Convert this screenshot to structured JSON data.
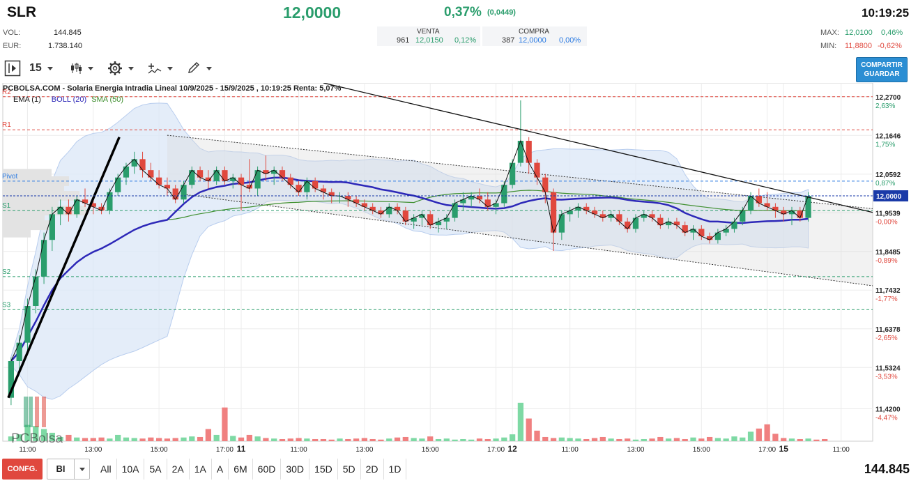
{
  "header": {
    "symbol": "SLR",
    "price": "12,0000",
    "pct": "0,37%",
    "change": "(0,0449)",
    "time": "10:19:25",
    "vol_label": "VOL:",
    "vol_value": "144.845",
    "eur_label": "EUR:",
    "eur_value": "1.738.140",
    "venta_label": "VENTA",
    "venta_qty": "961",
    "venta_price": "12,0150",
    "venta_pct": "0,12%",
    "compra_label": "COMPRA",
    "compra_qty": "387",
    "compra_price": "12,0000",
    "compra_pct": "0,00%",
    "max_label": "MAX:",
    "max_value": "12,0100",
    "max_pct": "0,46%",
    "min_label": "MIN:",
    "min_value": "11,8800",
    "min_pct": "-0,62%"
  },
  "toolbar": {
    "interval": "15",
    "share_line1": "COMPARTIR",
    "share_line2": "GUARDAR"
  },
  "bottom": {
    "config_label": "CONFG.",
    "select_value": "BI",
    "periods": [
      "All",
      "10A",
      "5A",
      "2A",
      "1A",
      "A",
      "6M",
      "60D",
      "30D",
      "15D",
      "5D",
      "2D",
      "1D"
    ],
    "volume_total": "144.845"
  },
  "colors": {
    "up": "#2a9d6c",
    "down": "#e0483e",
    "boll": "#2d28b8",
    "sma": "#3f8f2f",
    "band_fill": "#dbe7f7",
    "accent": "#2b8ed3"
  },
  "chart_data": {
    "type": "candlestick",
    "title": "PCBOLSA.COM - Solaria Energia Intradia Lineal 10/9/2025 - 15/9/2025 , 10:19:25 Renta: 5,07%",
    "watermark": "PCBolsa",
    "legend": [
      {
        "name": "EMA (1)",
        "color": "#111111"
      },
      {
        "name": "BOLL (20)",
        "color": "#2d28b8"
      },
      {
        "name": "SMA (50)",
        "color": "#3f8f2f"
      }
    ],
    "y_axis": {
      "min": 11.4,
      "max": 12.3,
      "ticks": [
        {
          "value": 12.27,
          "label": "12,2700",
          "pct": "2,63%"
        },
        {
          "value": 12.1646,
          "label": "12,1646",
          "pct": "1,75%"
        },
        {
          "value": 12.0592,
          "label": "12,0592",
          "pct": "0,87%"
        },
        {
          "value": 11.9539,
          "label": "11,9539",
          "pct": "-0,00%"
        },
        {
          "value": 11.8485,
          "label": "11,8485",
          "pct": "-0,89%"
        },
        {
          "value": 11.7432,
          "label": "11,7432",
          "pct": "-1,77%"
        },
        {
          "value": 11.6378,
          "label": "11,6378",
          "pct": "-2,65%"
        },
        {
          "value": 11.5324,
          "label": "11,5324",
          "pct": "-3,53%"
        },
        {
          "value": 11.42,
          "label": "11,4200",
          "pct": "-4,47%"
        }
      ],
      "current": {
        "value": 12.0,
        "label": "12,0000"
      }
    },
    "levels": [
      {
        "name": "R2",
        "value": 12.27
      },
      {
        "name": "R1",
        "value": 12.18
      },
      {
        "name": "Pivot",
        "value": 12.04
      },
      {
        "name": "S1",
        "value": 11.96
      },
      {
        "name": "S2",
        "value": 11.78
      },
      {
        "name": "S3",
        "value": 11.69
      }
    ],
    "x_labels": [
      {
        "i": 2,
        "label": "11:00"
      },
      {
        "i": 10,
        "label": "13:00"
      },
      {
        "i": 18,
        "label": "15:00"
      },
      {
        "i": 26,
        "label": "17:00"
      },
      {
        "i": 28,
        "label": "11",
        "bold": true
      },
      {
        "i": 35,
        "label": "11:00"
      },
      {
        "i": 43,
        "label": "13:00"
      },
      {
        "i": 51,
        "label": "15:00"
      },
      {
        "i": 59,
        "label": "17:00"
      },
      {
        "i": 61,
        "label": "12",
        "bold": true
      },
      {
        "i": 68,
        "label": "11:00"
      },
      {
        "i": 76,
        "label": "13:00"
      },
      {
        "i": 84,
        "label": "15:00"
      },
      {
        "i": 92,
        "label": "17:00"
      },
      {
        "i": 94,
        "label": "15",
        "bold": true
      },
      {
        "i": 101,
        "label": "11:00"
      }
    ],
    "x_count": 105,
    "candles": [
      [
        11.45,
        11.56,
        11.43,
        11.55
      ],
      [
        11.55,
        11.62,
        11.52,
        11.6
      ],
      [
        11.6,
        11.72,
        11.58,
        11.7
      ],
      [
        11.7,
        11.8,
        11.68,
        11.78
      ],
      [
        11.78,
        11.9,
        11.76,
        11.88
      ],
      [
        11.88,
        11.97,
        11.85,
        11.95
      ],
      [
        11.95,
        11.99,
        11.92,
        11.97
      ],
      [
        11.97,
        11.99,
        11.93,
        11.95
      ],
      [
        11.95,
        12.0,
        11.94,
        11.99
      ],
      [
        11.99,
        12.02,
        11.97,
        11.98
      ],
      [
        11.98,
        11.99,
        11.95,
        11.97
      ],
      [
        11.97,
        11.98,
        11.95,
        11.96
      ],
      [
        11.96,
        12.02,
        11.95,
        12.01
      ],
      [
        12.01,
        12.06,
        12.0,
        12.05
      ],
      [
        12.05,
        12.09,
        12.03,
        12.08
      ],
      [
        12.08,
        12.12,
        12.06,
        12.1
      ],
      [
        12.1,
        12.12,
        12.05,
        12.07
      ],
      [
        12.07,
        12.09,
        12.04,
        12.05
      ],
      [
        12.05,
        12.07,
        12.02,
        12.03
      ],
      [
        12.03,
        12.05,
        12.0,
        12.02
      ],
      [
        12.02,
        12.03,
        11.98,
        11.99
      ],
      [
        11.99,
        12.04,
        11.98,
        12.03
      ],
      [
        12.03,
        12.08,
        12.02,
        12.07
      ],
      [
        12.07,
        12.08,
        12.04,
        12.05
      ],
      [
        12.05,
        12.07,
        12.02,
        12.04
      ],
      [
        12.04,
        12.08,
        12.03,
        12.07
      ],
      [
        12.07,
        12.08,
        12.03,
        12.04
      ],
      [
        12.04,
        12.06,
        12.02,
        12.05
      ],
      [
        12.05,
        12.06,
        11.96,
        12.03
      ],
      [
        12.03,
        12.1,
        12.01,
        12.02
      ],
      [
        12.02,
        12.08,
        12.0,
        12.07
      ],
      [
        12.07,
        12.11,
        12.04,
        12.06
      ],
      [
        12.06,
        12.08,
        12.03,
        12.07
      ],
      [
        12.07,
        12.08,
        12.04,
        12.05
      ],
      [
        12.05,
        12.06,
        12.02,
        12.03
      ],
      [
        12.03,
        12.04,
        12.0,
        12.01
      ],
      [
        12.01,
        12.05,
        11.99,
        12.04
      ],
      [
        12.04,
        12.05,
        12.01,
        12.02
      ],
      [
        12.02,
        12.03,
        11.99,
        12.01
      ],
      [
        12.01,
        12.02,
        11.98,
        12.0
      ],
      [
        12.0,
        12.01,
        11.98,
        12.0
      ],
      [
        12.0,
        12.01,
        11.97,
        11.99
      ],
      [
        11.99,
        12.0,
        11.97,
        11.98
      ],
      [
        11.98,
        11.99,
        11.96,
        11.97
      ],
      [
        11.97,
        11.98,
        11.95,
        11.96
      ],
      [
        11.96,
        11.97,
        11.94,
        11.95
      ],
      [
        11.95,
        11.98,
        11.94,
        11.97
      ],
      [
        11.97,
        11.98,
        11.95,
        11.96
      ],
      [
        11.96,
        11.97,
        11.92,
        11.93
      ],
      [
        11.93,
        11.95,
        11.91,
        11.94
      ],
      [
        11.94,
        11.96,
        11.92,
        11.95
      ],
      [
        11.95,
        11.96,
        11.91,
        11.92
      ],
      [
        11.92,
        11.94,
        11.9,
        11.93
      ],
      [
        11.93,
        11.95,
        11.91,
        11.94
      ],
      [
        11.94,
        11.99,
        11.93,
        11.98
      ],
      [
        11.98,
        12.01,
        11.96,
        11.99
      ],
      [
        11.99,
        12.01,
        11.97,
        12.0
      ],
      [
        12.0,
        12.02,
        11.98,
        11.99
      ],
      [
        11.99,
        12.01,
        11.96,
        11.97
      ],
      [
        11.97,
        11.99,
        11.95,
        11.98
      ],
      [
        11.98,
        12.04,
        11.97,
        12.03
      ],
      [
        12.03,
        12.1,
        12.02,
        12.09
      ],
      [
        12.09,
        12.26,
        12.08,
        12.15
      ],
      [
        12.15,
        12.16,
        12.06,
        12.09
      ],
      [
        12.09,
        12.1,
        12.03,
        12.05
      ],
      [
        12.05,
        12.06,
        11.98,
        12.01
      ],
      [
        12.01,
        12.02,
        11.85,
        11.9
      ],
      [
        11.9,
        11.96,
        11.88,
        11.95
      ],
      [
        11.95,
        11.97,
        11.93,
        11.96
      ],
      [
        11.96,
        11.98,
        11.94,
        11.97
      ],
      [
        11.97,
        11.98,
        11.95,
        11.96
      ],
      [
        11.96,
        11.97,
        11.94,
        11.95
      ],
      [
        11.95,
        11.96,
        11.93,
        11.94
      ],
      [
        11.94,
        11.96,
        11.93,
        11.95
      ],
      [
        11.95,
        11.96,
        11.92,
        11.93
      ],
      [
        11.93,
        11.94,
        11.9,
        11.91
      ],
      [
        11.91,
        11.95,
        11.9,
        11.94
      ],
      [
        11.94,
        11.96,
        11.93,
        11.95
      ],
      [
        11.95,
        11.96,
        11.93,
        11.94
      ],
      [
        11.94,
        11.95,
        11.91,
        11.92
      ],
      [
        11.92,
        11.94,
        11.91,
        11.93
      ],
      [
        11.93,
        11.94,
        11.91,
        11.92
      ],
      [
        11.92,
        11.93,
        11.89,
        11.9
      ],
      [
        11.9,
        11.92,
        11.88,
        11.91
      ],
      [
        11.91,
        11.92,
        11.88,
        11.89
      ],
      [
        11.89,
        11.9,
        11.87,
        11.88
      ],
      [
        11.88,
        11.91,
        11.87,
        11.9
      ],
      [
        11.9,
        11.92,
        11.89,
        11.91
      ],
      [
        11.91,
        11.94,
        11.9,
        11.93
      ],
      [
        11.93,
        11.97,
        11.92,
        11.96
      ],
      [
        11.96,
        12.01,
        11.95,
        12.0
      ],
      [
        12.0,
        12.02,
        11.97,
        11.98
      ],
      [
        11.98,
        12.01,
        11.96,
        11.97
      ],
      [
        11.97,
        11.98,
        11.94,
        11.96
      ],
      [
        11.96,
        11.97,
        11.93,
        11.95
      ],
      [
        11.95,
        11.97,
        11.92,
        11.96
      ],
      [
        11.96,
        11.97,
        11.93,
        11.94
      ],
      [
        11.94,
        12.01,
        11.93,
        12.0
      ]
    ],
    "volume_max": 9000,
    "volumes": [
      900,
      1300,
      3100,
      2900,
      2300,
      1600,
      800,
      1200,
      700,
      600,
      600,
      700,
      500,
      1200,
      700,
      600,
      500,
      700,
      600,
      500,
      600,
      700,
      900,
      800,
      2300,
      1200,
      6400,
      1000,
      700,
      1200,
      900,
      600,
      500,
      400,
      500,
      600,
      500,
      400,
      400,
      300,
      500,
      400,
      500,
      600,
      400,
      300,
      500,
      700,
      800,
      600,
      500,
      900,
      400,
      500,
      300,
      400,
      300,
      500,
      400,
      500,
      700,
      1300,
      7300,
      4300,
      2000,
      800,
      600,
      700,
      600,
      500,
      400,
      600,
      800,
      500,
      400,
      500,
      300,
      400,
      500,
      800,
      500,
      600,
      400,
      700,
      500,
      800,
      600,
      500,
      900,
      700,
      1800,
      2400,
      3200,
      1400,
      600,
      500,
      400,
      500,
      300,
      400
    ],
    "volume_colors_up": [
      1,
      1,
      1,
      1,
      1,
      1,
      1,
      0,
      1,
      0,
      0,
      0,
      1,
      1,
      1,
      1,
      0,
      0,
      0,
      0,
      0,
      1,
      1,
      0,
      0,
      1,
      0,
      1,
      0,
      0,
      1,
      0,
      1,
      0,
      0,
      0,
      1,
      0,
      0,
      0,
      1,
      0,
      0,
      0,
      0,
      0,
      1,
      0,
      0,
      1,
      1,
      0,
      1,
      1,
      1,
      1,
      1,
      0,
      0,
      1,
      1,
      1,
      1,
      0,
      0,
      0,
      0,
      1,
      1,
      1,
      0,
      0,
      0,
      1,
      0,
      0,
      1,
      1,
      0,
      0,
      1,
      0,
      0,
      1,
      0,
      0,
      1,
      1,
      1,
      1,
      1,
      0,
      0,
      0,
      0,
      1,
      0,
      1
    ]
  }
}
